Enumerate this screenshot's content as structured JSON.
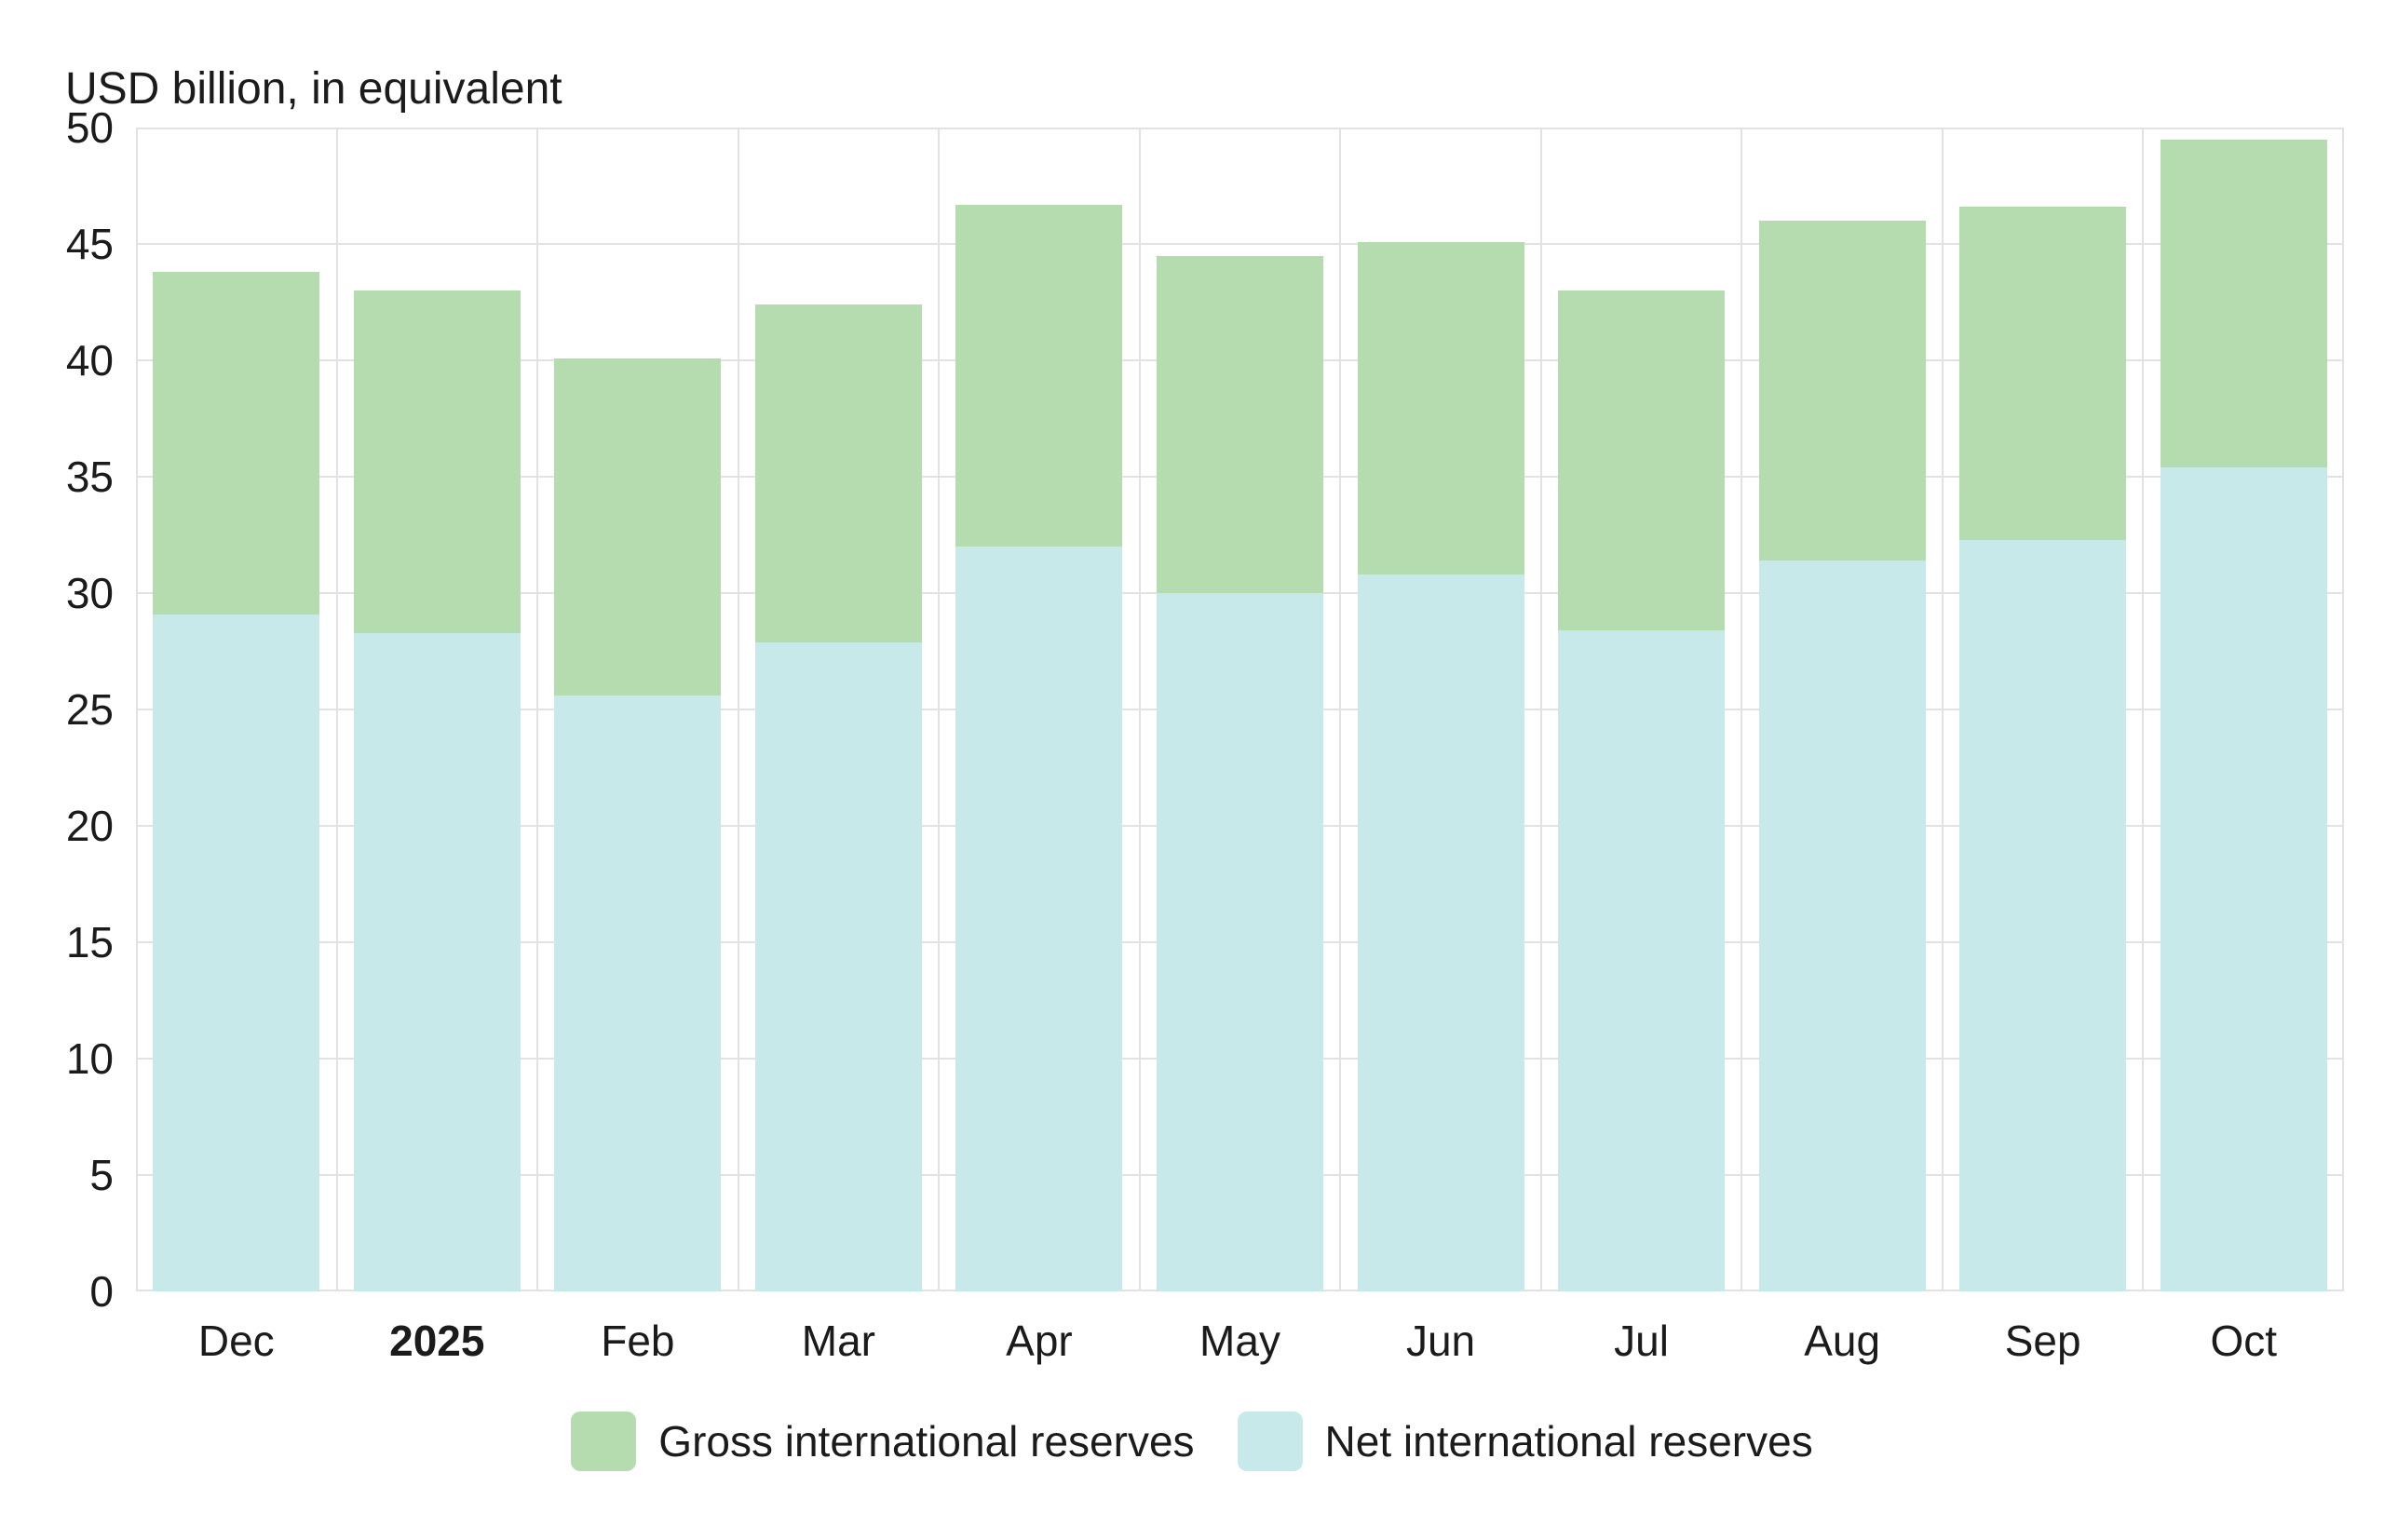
{
  "page": {
    "background": "#ffffff",
    "text_color": "#1b1b1b",
    "gridline_color": "#e2e2e2"
  },
  "chart_data": {
    "type": "bar",
    "stacked": true,
    "title": "USD billion, in equivalent",
    "categories": [
      "Dec",
      "2025",
      "Feb",
      "Mar",
      "Apr",
      "May",
      "Jun",
      "Jul",
      "Aug",
      "Sep",
      "Oct"
    ],
    "bold_category_index": 1,
    "series": [
      {
        "name": "Gross international reserves",
        "color": "#b4dcae",
        "role": "total-bar-height",
        "values": [
          43.8,
          43.0,
          40.1,
          42.4,
          46.7,
          44.5,
          45.1,
          43.0,
          46.0,
          46.6,
          49.5
        ]
      },
      {
        "name": "Net international reserves",
        "color": "#c7e9e9",
        "role": "bottom-segment",
        "values": [
          29.1,
          28.3,
          25.6,
          27.9,
          32.0,
          30.0,
          30.8,
          28.4,
          31.4,
          32.3,
          35.4
        ]
      }
    ],
    "xlabel": "",
    "ylabel": "",
    "ylim": [
      0,
      50
    ],
    "y_ticks": [
      0,
      5,
      10,
      15,
      20,
      25,
      30,
      35,
      40,
      45,
      50
    ],
    "grid": true,
    "legend_position": "bottom"
  }
}
